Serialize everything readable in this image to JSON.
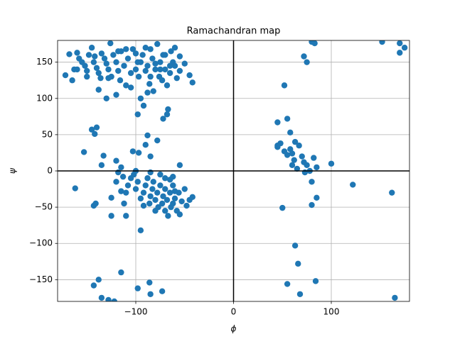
{
  "chart_data": {
    "type": "scatter",
    "title": "Ramachandran map",
    "xlabel": "ϕ",
    "ylabel": "ψ",
    "color": "#1f77b4",
    "grid": true,
    "zero_lines": true,
    "xlim": [
      -180,
      180
    ],
    "ylim": [
      -180,
      180
    ],
    "xticks": [
      {
        "value": -100,
        "label": "−100"
      },
      0,
      100
    ],
    "yticks": [
      {
        "value": -150,
        "label": "−150"
      },
      {
        "value": -100,
        "label": "−100"
      },
      {
        "value": -50,
        "label": "−50"
      },
      0,
      50,
      100,
      150
    ],
    "x": [
      -172,
      -168,
      -165,
      -163,
      -160,
      -158,
      -155,
      -152,
      -150,
      -148,
      -145,
      -143,
      -140,
      -138,
      -136,
      -135,
      -132,
      -130,
      -128,
      -126,
      -125,
      -123,
      -120,
      -118,
      -116,
      -115,
      -112,
      -110,
      -108,
      -105,
      -103,
      -100,
      -98,
      -97,
      -95,
      -93,
      -90,
      -88,
      -86,
      -85,
      -83,
      -82,
      -80,
      -78,
      -76,
      -75,
      -73,
      -72,
      -70,
      -68,
      -67,
      -65,
      -64,
      -62,
      -60,
      -58,
      -55,
      -50,
      -45,
      -42,
      -138,
      -130,
      -120,
      -105,
      -95,
      -92,
      -88,
      -72,
      -68,
      -160,
      -150,
      -142,
      -110,
      -100,
      -90,
      -80,
      -70,
      -60,
      -75,
      -65,
      -55,
      -85,
      -98,
      -118,
      -128,
      -153,
      -145,
      -140,
      -142,
      -135,
      -133,
      -120,
      -115,
      -103,
      -97,
      -90,
      -88,
      -85,
      -78,
      -55,
      -62,
      -162,
      -143,
      -141,
      -125,
      -125,
      -110,
      -112,
      -110,
      -108,
      -105,
      -102,
      -100,
      -98,
      -95,
      -95,
      -92,
      -90,
      -88,
      -86,
      -85,
      -83,
      -82,
      -80,
      -78,
      -77,
      -75,
      -73,
      -72,
      -70,
      -70,
      -68,
      -67,
      -65,
      -64,
      -62,
      -62,
      -60,
      -58,
      -56,
      -55,
      -53,
      -50,
      -48,
      -45,
      -42,
      -118,
      -115,
      -120,
      -113,
      -100,
      -80,
      -75,
      -65,
      -60,
      -85,
      -92,
      -70,
      -138,
      -143,
      -135,
      -128,
      -122,
      -115,
      -98,
      -86,
      -85,
      -73,
      52,
      55,
      58,
      63,
      72,
      75,
      80,
      83,
      45,
      45,
      48,
      52,
      55,
      58,
      60,
      62,
      65,
      67,
      70,
      72,
      73,
      75,
      78,
      80,
      80,
      82,
      85,
      85,
      100,
      122,
      162,
      50,
      55,
      63,
      66,
      68,
      84,
      152,
      170,
      175,
      170,
      165,
      60,
      45
    ],
    "y": [
      132,
      161,
      125,
      140,
      163,
      155,
      150,
      145,
      138,
      160,
      170,
      150,
      142,
      135,
      128,
      162,
      155,
      148,
      140,
      176,
      130,
      160,
      150,
      138,
      125,
      165,
      145,
      118,
      155,
      135,
      168,
      140,
      78,
      130,
      150,
      160,
      138,
      145,
      120,
      168,
      155,
      110,
      140,
      175,
      130,
      150,
      125,
      160,
      140,
      118,
      85,
      135,
      165,
      150,
      145,
      128,
      158,
      148,
      132,
      122,
      112,
      100,
      105,
      115,
      100,
      90,
      108,
      72,
      78,
      140,
      130,
      158,
      168,
      162,
      170,
      148,
      160,
      170,
      140,
      145,
      138,
      130,
      150,
      165,
      128,
      26,
      57,
      60,
      51,
      8,
      21,
      14,
      5,
      27,
      25,
      36,
      49,
      20,
      42,
      8,
      -8,
      -24,
      -48,
      -45,
      -37,
      -62,
      -62,
      -45,
      -30,
      -20,
      -10,
      -5,
      -25,
      -15,
      -38,
      -82,
      -30,
      -20,
      -10,
      -45,
      -35,
      -25,
      -15,
      -40,
      -30,
      -50,
      -20,
      -45,
      -35,
      -25,
      -55,
      -40,
      -62,
      -30,
      -50,
      -20,
      -45,
      -38,
      -55,
      -30,
      -60,
      -42,
      -25,
      -48,
      -40,
      -36,
      -2,
      -28,
      -15,
      -8,
      0,
      -55,
      -5,
      -12,
      -28,
      -2,
      -48,
      -10,
      -150,
      -158,
      -175,
      -178,
      -180,
      -140,
      -162,
      -154,
      -170,
      -166,
      118,
      72,
      53,
      40,
      158,
      150,
      178,
      176,
      67,
      33,
      38,
      27,
      22,
      30,
      24,
      15,
      3,
      35,
      20,
      12,
      -2,
      8,
      0,
      -15,
      -47,
      18,
      5,
      -37,
      10,
      -19,
      -30,
      -51,
      -156,
      -103,
      -128,
      -170,
      -152,
      178,
      176,
      170,
      163,
      -175,
      8,
      35
    ]
  }
}
